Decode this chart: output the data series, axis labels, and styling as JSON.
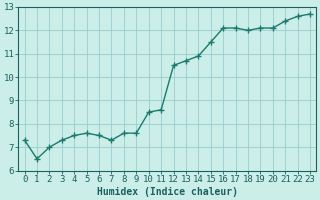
{
  "x": [
    0,
    1,
    2,
    3,
    4,
    5,
    6,
    7,
    8,
    9,
    10,
    11,
    12,
    13,
    14,
    15,
    16,
    17,
    18,
    19,
    20,
    21,
    22,
    23
  ],
  "y": [
    7.3,
    6.5,
    7.0,
    7.3,
    7.5,
    7.6,
    7.5,
    7.3,
    7.6,
    7.6,
    8.5,
    8.6,
    10.5,
    10.7,
    10.9,
    11.5,
    12.1,
    12.1,
    12.0,
    12.1,
    12.1,
    12.4,
    12.6,
    12.7
  ],
  "line_color": "#1a7a6e",
  "marker": "+",
  "marker_size": 4,
  "linewidth": 1.0,
  "xlabel": "Humidex (Indice chaleur)",
  "xlim": [
    -0.5,
    23.5
  ],
  "ylim": [
    6,
    13
  ],
  "yticks": [
    6,
    7,
    8,
    9,
    10,
    11,
    12,
    13
  ],
  "xticks": [
    0,
    1,
    2,
    3,
    4,
    5,
    6,
    7,
    8,
    9,
    10,
    11,
    12,
    13,
    14,
    15,
    16,
    17,
    18,
    19,
    20,
    21,
    22,
    23
  ],
  "bg_color": "#cceee8",
  "grid_color": "#99cccc",
  "tick_label_color": "#1a6060",
  "axis_color": "#1a6060",
  "xlabel_color": "#1a6060",
  "xlabel_fontsize": 7,
  "tick_fontsize": 6.5,
  "linestyle": "-"
}
